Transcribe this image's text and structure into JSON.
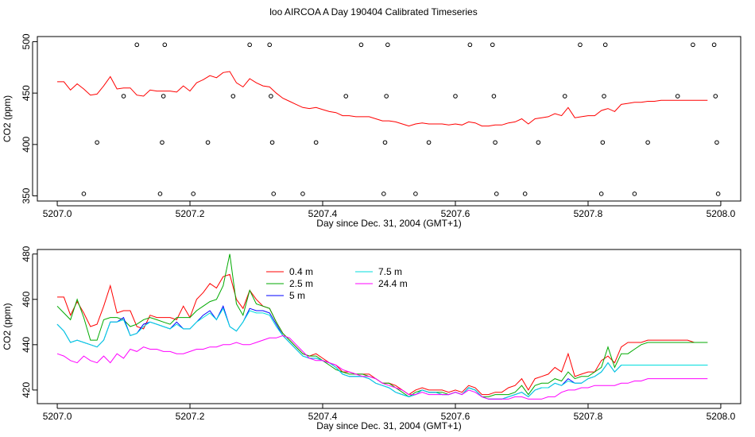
{
  "title": "loo AIRCOA A  Day 190404  Calibrated Timeseries",
  "colors": {
    "axis": "#000000",
    "background": "#ffffff"
  },
  "chart_data": [
    {
      "type": "scatter",
      "title": "",
      "xlabel": "Day since Dec. 31, 2004 (GMT+1)",
      "ylabel": "CO2 (ppm)",
      "xlim": [
        5206.97,
        5208.03
      ],
      "ylim": [
        345,
        505
      ],
      "x_ticks": [
        5207.0,
        5207.2,
        5207.4,
        5207.6,
        5207.8,
        5208.0
      ],
      "y_ticks": [
        350,
        400,
        450,
        500
      ],
      "x_tick_labels": [
        "5207.0",
        "5207.2",
        "5207.4",
        "5207.6",
        "5207.8",
        "5208.0"
      ],
      "y_tick_labels": [
        "350",
        "400",
        "450",
        "500"
      ],
      "series": [
        {
          "color": "#ff0000",
          "x": [
            5207.0,
            5207.01,
            5207.02,
            5207.03,
            5207.04,
            5207.05,
            5207.06,
            5207.07,
            5207.08,
            5207.09,
            5207.1,
            5207.11,
            5207.12,
            5207.13,
            5207.14,
            5207.15,
            5207.16,
            5207.17,
            5207.18,
            5207.19,
            5207.2,
            5207.21,
            5207.22,
            5207.23,
            5207.24,
            5207.25,
            5207.26,
            5207.27,
            5207.28,
            5207.29,
            5207.3,
            5207.31,
            5207.32,
            5207.33,
            5207.34,
            5207.35,
            5207.36,
            5207.37,
            5207.38,
            5207.39,
            5207.4,
            5207.41,
            5207.42,
            5207.43,
            5207.44,
            5207.45,
            5207.46,
            5207.47,
            5207.48,
            5207.49,
            5207.5,
            5207.51,
            5207.52,
            5207.53,
            5207.54,
            5207.55,
            5207.56,
            5207.57,
            5207.58,
            5207.59,
            5207.6,
            5207.61,
            5207.62,
            5207.63,
            5207.64,
            5207.65,
            5207.66,
            5207.67,
            5207.68,
            5207.69,
            5207.7,
            5207.71,
            5207.72,
            5207.73,
            5207.74,
            5207.75,
            5207.76,
            5207.77,
            5207.78,
            5207.79,
            5207.8,
            5207.81,
            5207.82,
            5207.83,
            5207.84,
            5207.85,
            5207.86,
            5207.87,
            5207.88,
            5207.89,
            5207.9,
            5207.91,
            5207.92,
            5207.93,
            5207.94,
            5207.95,
            5207.96,
            5207.97,
            5207.98
          ],
          "values": [
            461,
            461,
            453,
            459,
            454,
            448,
            449,
            457,
            466,
            454,
            455,
            455,
            448,
            447,
            453,
            452,
            452,
            452,
            451,
            457,
            452,
            460,
            463,
            467,
            465,
            470,
            471,
            460,
            456,
            464,
            460,
            457,
            456,
            450,
            445,
            442,
            439,
            436,
            435,
            436,
            434,
            432,
            431,
            428,
            428,
            427,
            427,
            427,
            425,
            423,
            423,
            422,
            420,
            418,
            420,
            421,
            420,
            420,
            420,
            419,
            420,
            419,
            422,
            421,
            418,
            418,
            419,
            419,
            421,
            422,
            425,
            420,
            425,
            426,
            427,
            430,
            428,
            436,
            426,
            427,
            428,
            428,
            433,
            435,
            432,
            439,
            440,
            441,
            441,
            442,
            442,
            443,
            443,
            443,
            443,
            443,
            443,
            443,
            443
          ]
        }
      ],
      "points": [
        {
          "x": 5207.04,
          "y": 352
        },
        {
          "x": 5207.06,
          "y": 402
        },
        {
          "x": 5207.1,
          "y": 447
        },
        {
          "x": 5207.12,
          "y": 497
        },
        {
          "x": 5207.155,
          "y": 352
        },
        {
          "x": 5207.158,
          "y": 402
        },
        {
          "x": 5207.16,
          "y": 447
        },
        {
          "x": 5207.162,
          "y": 497
        },
        {
          "x": 5207.205,
          "y": 352
        },
        {
          "x": 5207.227,
          "y": 402
        },
        {
          "x": 5207.265,
          "y": 447
        },
        {
          "x": 5207.29,
          "y": 497
        },
        {
          "x": 5207.32,
          "y": 497
        },
        {
          "x": 5207.322,
          "y": 447
        },
        {
          "x": 5207.324,
          "y": 402
        },
        {
          "x": 5207.326,
          "y": 352
        },
        {
          "x": 5207.37,
          "y": 352
        },
        {
          "x": 5207.39,
          "y": 402
        },
        {
          "x": 5207.435,
          "y": 447
        },
        {
          "x": 5207.458,
          "y": 497
        },
        {
          "x": 5207.492,
          "y": 352
        },
        {
          "x": 5207.494,
          "y": 402
        },
        {
          "x": 5207.496,
          "y": 447
        },
        {
          "x": 5207.498,
          "y": 497
        },
        {
          "x": 5207.54,
          "y": 352
        },
        {
          "x": 5207.56,
          "y": 402
        },
        {
          "x": 5207.6,
          "y": 447
        },
        {
          "x": 5207.622,
          "y": 497
        },
        {
          "x": 5207.656,
          "y": 497
        },
        {
          "x": 5207.658,
          "y": 447
        },
        {
          "x": 5207.66,
          "y": 402
        },
        {
          "x": 5207.662,
          "y": 352
        },
        {
          "x": 5207.705,
          "y": 352
        },
        {
          "x": 5207.725,
          "y": 402
        },
        {
          "x": 5207.765,
          "y": 447
        },
        {
          "x": 5207.788,
          "y": 497
        },
        {
          "x": 5207.82,
          "y": 352
        },
        {
          "x": 5207.822,
          "y": 402
        },
        {
          "x": 5207.824,
          "y": 447
        },
        {
          "x": 5207.826,
          "y": 497
        },
        {
          "x": 5207.87,
          "y": 352
        },
        {
          "x": 5207.89,
          "y": 402
        },
        {
          "x": 5207.935,
          "y": 447
        },
        {
          "x": 5207.958,
          "y": 497
        },
        {
          "x": 5207.99,
          "y": 497
        },
        {
          "x": 5207.992,
          "y": 447
        },
        {
          "x": 5207.994,
          "y": 402
        },
        {
          "x": 5207.996,
          "y": 352
        }
      ]
    },
    {
      "type": "line",
      "title": "",
      "xlabel": "Day since Dec. 31, 2004 (GMT+1)",
      "ylabel": "CO2 (ppm)",
      "xlim": [
        5206.97,
        5208.03
      ],
      "ylim": [
        414,
        482
      ],
      "x_ticks": [
        5207.0,
        5207.2,
        5207.4,
        5207.6,
        5207.8,
        5208.0
      ],
      "y_ticks": [
        420,
        440,
        460,
        480
      ],
      "x_tick_labels": [
        "5207.0",
        "5207.2",
        "5207.4",
        "5207.6",
        "5207.8",
        "5208.0"
      ],
      "y_tick_labels": [
        "420",
        "440",
        "460",
        "480"
      ],
      "legend_position": "top-center",
      "x": [
        5207.0,
        5207.01,
        5207.02,
        5207.03,
        5207.04,
        5207.05,
        5207.06,
        5207.07,
        5207.08,
        5207.09,
        5207.1,
        5207.11,
        5207.12,
        5207.13,
        5207.14,
        5207.15,
        5207.16,
        5207.17,
        5207.18,
        5207.19,
        5207.2,
        5207.21,
        5207.22,
        5207.23,
        5207.24,
        5207.25,
        5207.26,
        5207.27,
        5207.28,
        5207.29,
        5207.3,
        5207.31,
        5207.32,
        5207.33,
        5207.34,
        5207.35,
        5207.36,
        5207.37,
        5207.38,
        5207.39,
        5207.4,
        5207.41,
        5207.42,
        5207.43,
        5207.44,
        5207.45,
        5207.46,
        5207.47,
        5207.48,
        5207.49,
        5207.5,
        5207.51,
        5207.52,
        5207.53,
        5207.54,
        5207.55,
        5207.56,
        5207.57,
        5207.58,
        5207.59,
        5207.6,
        5207.61,
        5207.62,
        5207.63,
        5207.64,
        5207.65,
        5207.66,
        5207.67,
        5207.68,
        5207.69,
        5207.7,
        5207.71,
        5207.72,
        5207.73,
        5207.74,
        5207.75,
        5207.76,
        5207.77,
        5207.78,
        5207.79,
        5207.8,
        5207.81,
        5207.82,
        5207.83,
        5207.84,
        5207.85,
        5207.86,
        5207.87,
        5207.88,
        5207.89,
        5207.9,
        5207.91,
        5207.92,
        5207.93,
        5207.94,
        5207.95,
        5207.96,
        5207.97,
        5207.98
      ],
      "series": [
        {
          "name": "0.4 m",
          "color": "#ff0000",
          "values": [
            461,
            461,
            453,
            459,
            454,
            448,
            449,
            457,
            466,
            454,
            455,
            455,
            448,
            447,
            453,
            452,
            452,
            452,
            451,
            457,
            452,
            460,
            463,
            467,
            465,
            470,
            471,
            460,
            456,
            464,
            460,
            457,
            456,
            450,
            445,
            442,
            439,
            436,
            435,
            436,
            434,
            432,
            431,
            428,
            428,
            427,
            427,
            427,
            425,
            423,
            423,
            422,
            420,
            418,
            420,
            421,
            420,
            420,
            420,
            419,
            420,
            419,
            422,
            421,
            418,
            418,
            419,
            419,
            421,
            422,
            425,
            420,
            425,
            426,
            427,
            430,
            428,
            436,
            426,
            427,
            428,
            428,
            433,
            435,
            432,
            439,
            441,
            441,
            441,
            442,
            442,
            442,
            442,
            442,
            442,
            442,
            441,
            441,
            441
          ]
        },
        {
          "name": "2.5 m",
          "color": "#00aa00",
          "values": [
            457,
            454,
            451,
            460,
            452,
            442,
            442,
            451,
            452,
            452,
            451,
            448,
            449,
            451,
            452,
            451,
            450,
            449,
            452,
            452,
            452,
            455,
            457,
            459,
            460,
            466,
            480,
            458,
            453,
            464,
            458,
            457,
            456,
            450,
            445,
            442,
            439,
            436,
            435,
            435,
            433,
            431,
            429,
            428,
            427,
            427,
            427,
            426,
            425,
            423,
            423,
            421,
            419,
            417,
            419,
            420,
            419,
            419,
            419,
            418,
            419,
            418,
            421,
            420,
            417,
            417,
            418,
            418,
            418,
            419,
            422,
            418,
            422,
            423,
            423,
            425,
            424,
            428,
            425,
            426,
            426,
            428,
            430,
            439,
            430,
            436,
            436,
            438,
            440,
            441,
            441,
            441,
            441,
            441,
            441,
            441,
            441,
            441,
            441
          ]
        },
        {
          "name": "5 m",
          "color": "#0000ff",
          "values": [
            449,
            446,
            441,
            442,
            441,
            440,
            439,
            442,
            450,
            450,
            452,
            444,
            445,
            449,
            450,
            449,
            448,
            447,
            450,
            447,
            447,
            450,
            453,
            455,
            451,
            457,
            448,
            446,
            450,
            456,
            455,
            455,
            454,
            449,
            444,
            441,
            438,
            435,
            434,
            434,
            433,
            432,
            430,
            427,
            426,
            426,
            426,
            425,
            423,
            422,
            421,
            419,
            418,
            417,
            418,
            420,
            419,
            419,
            418,
            418,
            419,
            418,
            421,
            420,
            417,
            416,
            416,
            416,
            417,
            418,
            419,
            417,
            420,
            421,
            421,
            423,
            422,
            425,
            423,
            423,
            425,
            426,
            428,
            432,
            428,
            431,
            431,
            431,
            431,
            431,
            431,
            431,
            431,
            431,
            431,
            431,
            431,
            431,
            431
          ]
        },
        {
          "name": "7.5 m",
          "color": "#00dddd",
          "values": [
            449,
            446,
            441,
            442,
            441,
            440,
            439,
            442,
            450,
            450,
            451,
            444,
            445,
            448,
            450,
            449,
            448,
            447,
            449,
            447,
            447,
            450,
            452,
            454,
            451,
            456,
            448,
            446,
            450,
            455,
            454,
            454,
            453,
            448,
            444,
            441,
            438,
            435,
            434,
            434,
            433,
            432,
            430,
            427,
            426,
            426,
            426,
            425,
            423,
            422,
            421,
            419,
            418,
            417,
            418,
            420,
            419,
            419,
            418,
            418,
            419,
            418,
            421,
            420,
            417,
            416,
            416,
            416,
            417,
            418,
            419,
            417,
            420,
            421,
            421,
            423,
            422,
            424,
            423,
            423,
            425,
            426,
            428,
            432,
            428,
            431,
            431,
            431,
            431,
            431,
            431,
            431,
            431,
            431,
            431,
            431,
            431,
            431,
            431
          ]
        },
        {
          "name": "24.4 m",
          "color": "#ff00ff",
          "values": [
            436,
            435,
            433,
            432,
            435,
            433,
            432,
            435,
            432,
            436,
            434,
            438,
            437,
            439,
            438,
            438,
            437,
            437,
            436,
            436,
            437,
            438,
            438,
            439,
            439,
            440,
            440,
            441,
            440,
            440,
            441,
            442,
            443,
            443,
            444,
            443,
            440,
            437,
            434,
            433,
            433,
            432,
            431,
            429,
            428,
            427,
            426,
            426,
            425,
            423,
            422,
            421,
            420,
            418,
            418,
            419,
            418,
            418,
            418,
            418,
            419,
            418,
            420,
            419,
            417,
            416,
            416,
            416,
            416,
            417,
            417,
            416,
            416,
            416,
            417,
            417,
            419,
            420,
            420,
            421,
            421,
            422,
            422,
            422,
            422,
            423,
            423,
            424,
            424,
            425,
            425,
            425,
            425,
            425,
            425,
            425,
            425,
            425,
            425
          ]
        }
      ]
    }
  ]
}
